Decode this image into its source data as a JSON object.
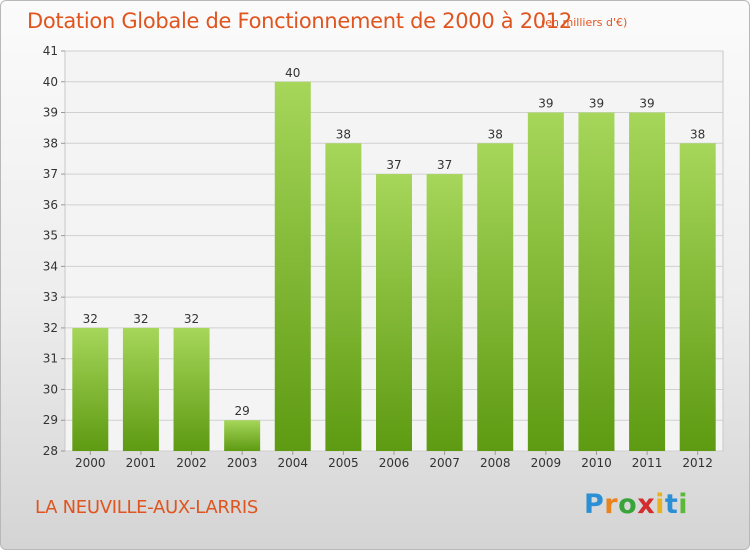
{
  "chart_data": {
    "type": "bar",
    "title": "Dotation Globale de Fonctionnement de 2000 à 2012",
    "subtitle": "(en milliers d'€)",
    "categories": [
      "2000",
      "2001",
      "2002",
      "2003",
      "2004",
      "2005",
      "2006",
      "2007",
      "2008",
      "2009",
      "2010",
      "2011",
      "2012"
    ],
    "values": [
      32,
      32,
      32,
      29,
      40,
      38,
      37,
      37,
      38,
      39,
      39,
      39,
      38
    ],
    "ylim": [
      28,
      41
    ],
    "yticks": [
      28,
      29,
      30,
      31,
      32,
      33,
      34,
      35,
      36,
      37,
      38,
      39,
      40,
      41
    ],
    "grid": true,
    "bar_color": "#7cbd2a",
    "xlabel": "",
    "ylabel": ""
  },
  "footer": {
    "commune": "LA NEUVILLE-AUX-LARRIS"
  },
  "logo": {
    "letters": [
      "P",
      "r",
      "o",
      "x",
      "i",
      "t",
      "i"
    ],
    "colors": [
      "#2b8fd6",
      "#e8831e",
      "#3aa33a",
      "#d42d2d",
      "#e8b21e",
      "#2b8fd6",
      "#5cb83a"
    ]
  },
  "colors": {
    "title": "#e0541f",
    "bar_top": "#a6d65a",
    "bar_bottom": "#5e9a12"
  }
}
